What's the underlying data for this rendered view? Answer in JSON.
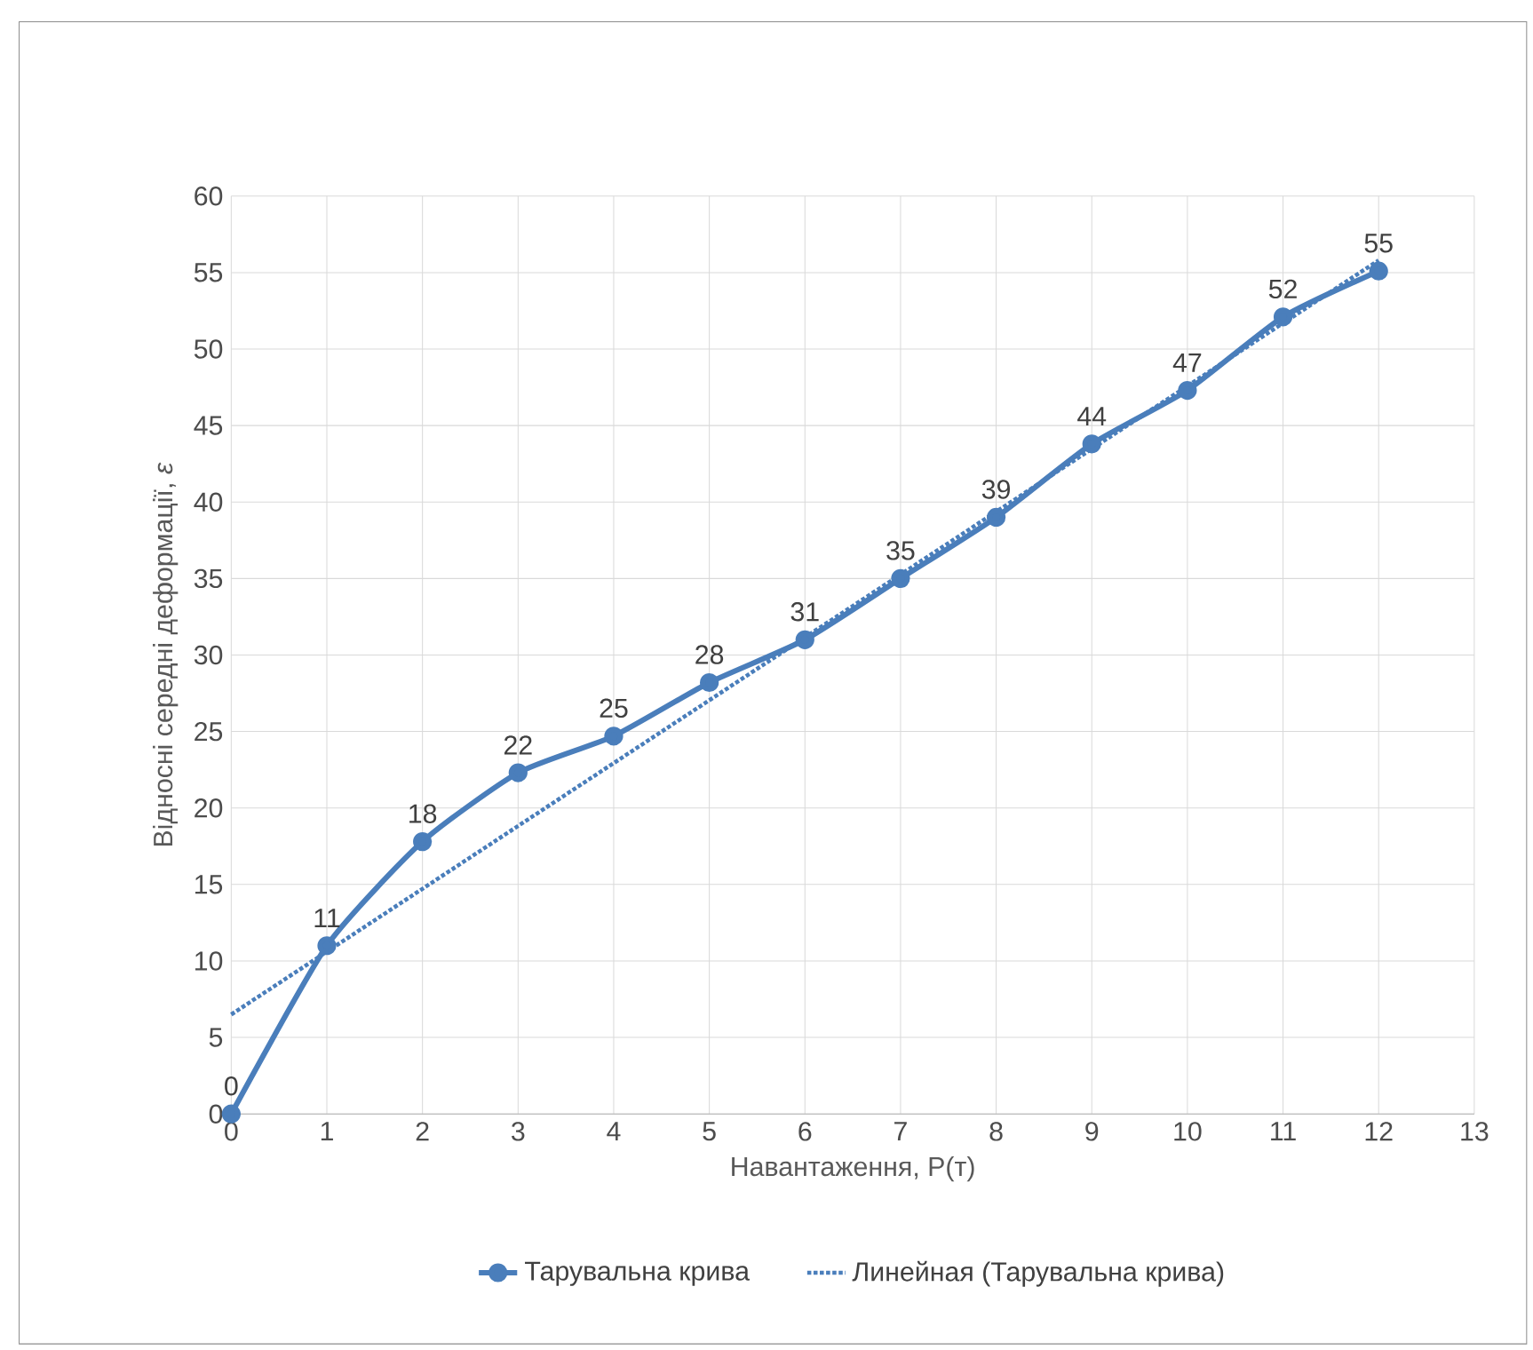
{
  "chart_data": {
    "type": "line",
    "xlabel": "Навантаження, P(т)",
    "ylabel": "Відносні середні деформації, *ε*",
    "x": [
      0,
      1,
      2,
      3,
      4,
      5,
      6,
      7,
      8,
      9,
      10,
      11,
      12
    ],
    "series": [
      {
        "name": "Тарувальна крива",
        "color": "#4a7ebb",
        "marker": "circle",
        "line_style": "solid",
        "values": [
          0,
          11,
          17.8,
          22.3,
          24.7,
          28.2,
          31,
          35,
          39,
          43.8,
          47.3,
          52.1,
          55.1
        ],
        "value_labels": [
          "0",
          "11",
          "18",
          "22",
          "25",
          "28",
          "31",
          "35",
          "39",
          "44",
          "47",
          "52",
          "55"
        ]
      },
      {
        "name": "Линейная (Тарувальна крива)",
        "type": "line",
        "color": "#4a7ebb",
        "marker": "none",
        "line_style": "dotted",
        "x": [
          0,
          12
        ],
        "values": [
          6.5,
          55.8
        ]
      }
    ],
    "xlim": [
      0,
      13
    ],
    "ylim": [
      0,
      60
    ],
    "xticks": [
      0,
      1,
      2,
      3,
      4,
      5,
      6,
      7,
      8,
      9,
      10,
      11,
      12,
      13
    ],
    "yticks": [
      0,
      5,
      10,
      15,
      20,
      25,
      30,
      35,
      40,
      45,
      50,
      55,
      60
    ],
    "grid": true,
    "legend": "bottom"
  }
}
